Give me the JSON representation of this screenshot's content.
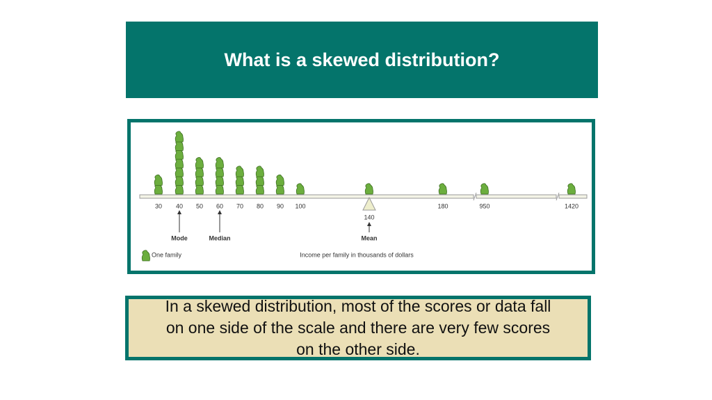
{
  "title": "What is a skewed distribution?",
  "chart_data": {
    "type": "pictograph",
    "categories": [
      "30",
      "40",
      "50",
      "60",
      "70",
      "80",
      "90",
      "100",
      "140",
      "180",
      "950",
      "1420"
    ],
    "values": [
      2,
      7,
      4,
      4,
      3,
      3,
      2,
      1,
      1,
      1,
      1,
      1
    ],
    "color": "#6cae3e",
    "annotations": [
      {
        "label": "Mode",
        "category": 1
      },
      {
        "label": "Median",
        "category": 3
      },
      {
        "label": "Mean",
        "category": 8
      }
    ],
    "legend": "One family",
    "xlabel": "Income per family in thousands of dollars"
  },
  "caption": "In a skewed distribution, most of the scores or data fall on one side of the scale and there are very few scores on the other side."
}
